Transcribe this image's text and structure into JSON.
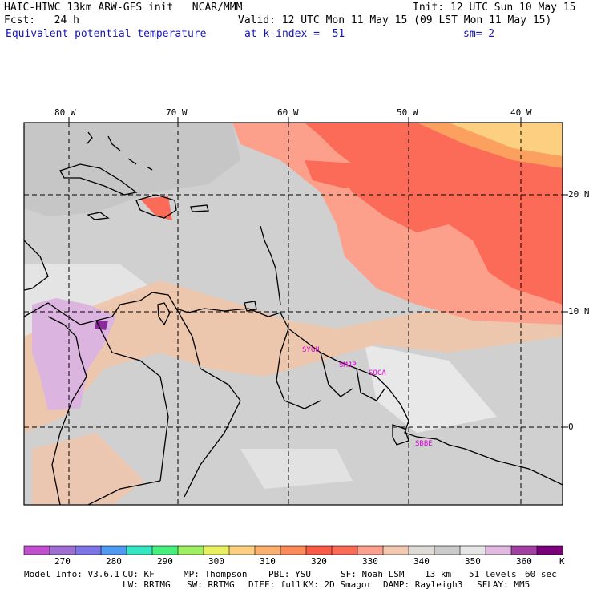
{
  "header": {
    "model_title": "HAIC-HIWC 13km ARW-GFS init   NCAR/MMM",
    "init": "Init: 12 UTC Sun 10 May 15",
    "fcst": "Fcst:   24 h",
    "valid": "Valid: 12 UTC Mon 11 May 15 (09 LST Mon 11 May 15)",
    "field": "Equivalent potential temperature",
    "level": "at k-index =  51",
    "smoothing": "sm= 2"
  },
  "map": {
    "lon_labels": [
      "80 W",
      "70 W",
      "60 W",
      "50 W",
      "40 W"
    ],
    "lat_labels": [
      "20 N",
      "10 N",
      "0"
    ],
    "stations": [
      "SYGU",
      "SMJP",
      "SOCA",
      "SBBE"
    ],
    "colors": {
      "land_border": "#000000",
      "grid": "#000000",
      "station_label": "#e000e0"
    }
  },
  "colorbar": {
    "unit": "K",
    "labels": [
      "270",
      "280",
      "290",
      "300",
      "310",
      "320",
      "330",
      "340",
      "350",
      "360"
    ],
    "colors": [
      "#c14fcf",
      "#9e6fd0",
      "#7d75e6",
      "#4f9af0",
      "#35e6c2",
      "#47f07c",
      "#9ef060",
      "#e8f060",
      "#fcd080",
      "#fcb070",
      "#fc8a5a",
      "#fc5a48",
      "#fc6a58",
      "#fca090",
      "#f2c8b0",
      "#dedad6",
      "#cacaca",
      "#e6e6e6",
      "#e0b8e0",
      "#a040a0",
      "#780078"
    ]
  },
  "footer": {
    "line1": [
      "Model Info: V3.6.1",
      "CU: KF",
      "MP: Thompson",
      "PBL: YSU",
      "SF: Noah LSM",
      "13 km",
      "51 levels",
      "60 sec"
    ],
    "line2": [
      "LW: RRTMG",
      "SW: RRTMG",
      "DIFF: full",
      "KM: 2D Smagor",
      "DAMP: Rayleigh3",
      "SFLAY: MM5"
    ]
  }
}
